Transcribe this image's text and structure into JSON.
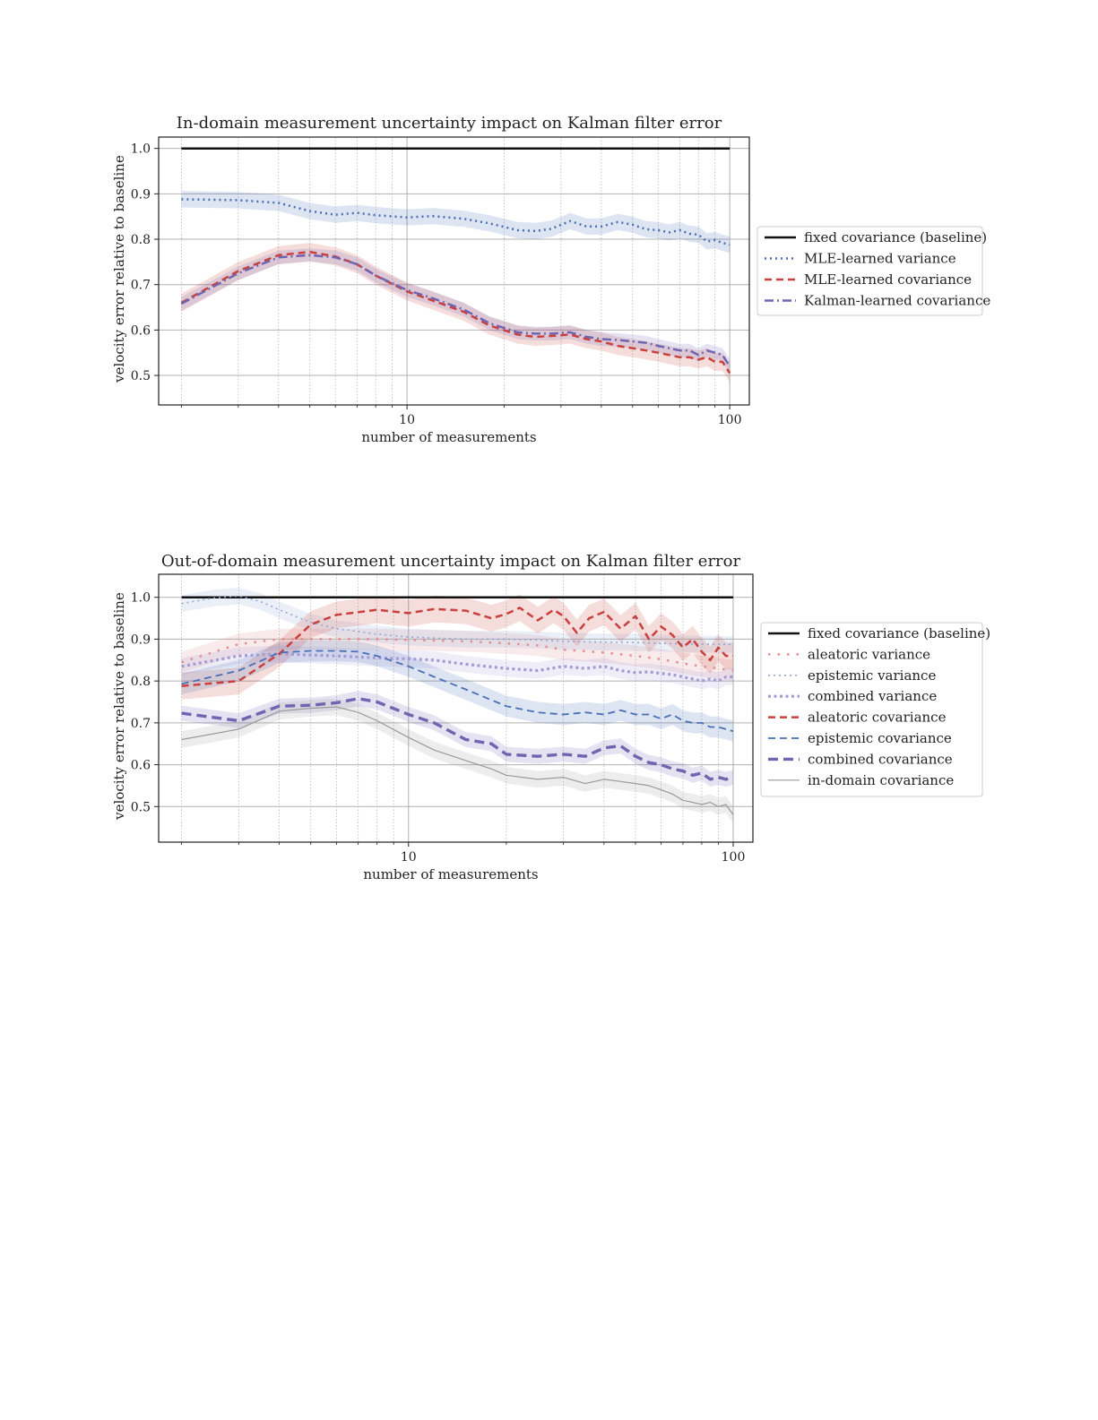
{
  "chart_data": [
    {
      "type": "line",
      "title": "In-domain measurement uncertainty impact on Kalman filter error",
      "xlabel": "number of measurements",
      "ylabel": "velocity error relative to baseline",
      "x_scale": "log",
      "xlim": [
        1.7,
        115
      ],
      "ylim": [
        0.435,
        1.025
      ],
      "x_tick_labels": [
        {
          "value": 10,
          "label": "10"
        },
        {
          "value": 100,
          "label": "100"
        }
      ],
      "y_tick_labels": [
        {
          "value": 0.5,
          "label": "0.5"
        },
        {
          "value": 0.6,
          "label": "0.6"
        },
        {
          "value": 0.7,
          "label": "0.7"
        },
        {
          "value": 0.8,
          "label": "0.8"
        },
        {
          "value": 0.9,
          "label": "0.9"
        },
        {
          "value": 1.0,
          "label": "1.0"
        }
      ],
      "grid": true,
      "legend_position": "outside-right",
      "series": [
        {
          "name": "fixed covariance (baseline)",
          "color": "#111111",
          "style": "solid",
          "width": 2.5,
          "x": [
            2,
            100
          ],
          "y": [
            1.0,
            1.0
          ],
          "band": 0
        },
        {
          "name": "MLE-learned variance",
          "color": "#4a6fb5",
          "style": "dotted",
          "width": 2.5,
          "x": [
            2,
            3,
            4,
            5,
            6,
            7,
            8,
            10,
            12,
            15,
            18,
            22,
            25,
            28,
            32,
            36,
            40,
            45,
            50,
            55,
            60,
            65,
            70,
            75,
            80,
            85,
            90,
            95,
            100
          ],
          "y": [
            0.888,
            0.886,
            0.88,
            0.862,
            0.854,
            0.858,
            0.853,
            0.848,
            0.851,
            0.845,
            0.835,
            0.82,
            0.818,
            0.823,
            0.84,
            0.828,
            0.828,
            0.838,
            0.832,
            0.822,
            0.82,
            0.815,
            0.82,
            0.812,
            0.81,
            0.795,
            0.798,
            0.792,
            0.788
          ],
          "band": 0.018
        },
        {
          "name": "MLE-learned covariance",
          "color": "#c9403e",
          "style": "dashed",
          "width": 2.5,
          "x": [
            2,
            3,
            4,
            5,
            6,
            7,
            8,
            10,
            12,
            15,
            18,
            22,
            25,
            28,
            32,
            36,
            40,
            45,
            50,
            55,
            60,
            65,
            70,
            75,
            80,
            85,
            90,
            95,
            100
          ],
          "y": [
            0.66,
            0.73,
            0.765,
            0.772,
            0.762,
            0.745,
            0.72,
            0.685,
            0.665,
            0.64,
            0.61,
            0.59,
            0.585,
            0.587,
            0.59,
            0.58,
            0.575,
            0.565,
            0.56,
            0.555,
            0.55,
            0.545,
            0.54,
            0.54,
            0.535,
            0.54,
            0.53,
            0.53,
            0.505
          ],
          "band": 0.02
        },
        {
          "name": "Kalman-learned covariance",
          "color": "#7065b0",
          "style": "dashdot",
          "width": 2.5,
          "x": [
            2,
            3,
            4,
            5,
            6,
            7,
            8,
            10,
            12,
            15,
            18,
            22,
            25,
            28,
            32,
            36,
            40,
            45,
            50,
            55,
            60,
            65,
            70,
            75,
            80,
            85,
            90,
            95,
            100
          ],
          "y": [
            0.658,
            0.725,
            0.76,
            0.765,
            0.76,
            0.745,
            0.72,
            0.688,
            0.67,
            0.645,
            0.615,
            0.595,
            0.592,
            0.592,
            0.595,
            0.585,
            0.58,
            0.578,
            0.575,
            0.572,
            0.565,
            0.56,
            0.555,
            0.555,
            0.545,
            0.555,
            0.55,
            0.545,
            0.52
          ],
          "band": 0.015
        }
      ]
    },
    {
      "type": "line",
      "title": "Out-of-domain measurement uncertainty impact on Kalman filter error",
      "xlabel": "number of measurements",
      "ylabel": "velocity error relative to baseline",
      "x_scale": "log",
      "xlim": [
        1.7,
        115
      ],
      "ylim": [
        0.415,
        1.055
      ],
      "x_tick_labels": [
        {
          "value": 10,
          "label": "10"
        },
        {
          "value": 100,
          "label": "100"
        }
      ],
      "y_tick_labels": [
        {
          "value": 0.5,
          "label": "0.5"
        },
        {
          "value": 0.6,
          "label": "0.6"
        },
        {
          "value": 0.7,
          "label": "0.7"
        },
        {
          "value": 0.8,
          "label": "0.8"
        },
        {
          "value": 0.9,
          "label": "0.9"
        },
        {
          "value": 1.0,
          "label": "1.0"
        }
      ],
      "grid": true,
      "legend_position": "outside-right",
      "series": [
        {
          "name": "fixed covariance (baseline)",
          "color": "#111111",
          "style": "solid",
          "width": 2.5,
          "x": [
            2,
            100
          ],
          "y": [
            1.0,
            1.0
          ],
          "band": 0
        },
        {
          "name": "aleatoric variance",
          "color": "#e09090",
          "style": "dotted-sparse",
          "width": 2.5,
          "x": [
            2,
            3,
            4,
            5,
            6,
            8,
            10,
            15,
            20,
            25,
            30,
            40,
            50,
            60,
            70,
            80,
            90,
            100
          ],
          "y": [
            0.845,
            0.888,
            0.9,
            0.9,
            0.9,
            0.9,
            0.898,
            0.895,
            0.89,
            0.885,
            0.875,
            0.868,
            0.86,
            0.852,
            0.842,
            0.835,
            0.83,
            0.825
          ],
          "band": 0.025
        },
        {
          "name": "epistemic variance",
          "color": "#8fa8d4",
          "style": "dotted",
          "width": 1.6,
          "x": [
            2,
            2.5,
            3,
            3.5,
            4,
            5,
            6,
            8,
            10,
            15,
            20,
            25,
            30,
            40,
            50,
            60,
            70,
            80,
            90,
            100
          ],
          "y": [
            0.985,
            0.998,
            1.003,
            0.99,
            0.97,
            0.94,
            0.925,
            0.912,
            0.905,
            0.9,
            0.9,
            0.898,
            0.895,
            0.893,
            0.892,
            0.89,
            0.889,
            0.888,
            0.888,
            0.887
          ],
          "band": 0.02
        },
        {
          "name": "combined variance",
          "color": "#a49bd6",
          "style": "dotted-thick",
          "width": 3.2,
          "x": [
            2,
            3,
            4,
            5,
            6,
            8,
            10,
            12,
            15,
            20,
            25,
            30,
            35,
            40,
            45,
            50,
            55,
            60,
            65,
            70,
            75,
            80,
            85,
            90,
            95,
            100
          ],
          "y": [
            0.835,
            0.86,
            0.865,
            0.862,
            0.86,
            0.855,
            0.853,
            0.85,
            0.84,
            0.83,
            0.825,
            0.835,
            0.83,
            0.835,
            0.825,
            0.82,
            0.822,
            0.818,
            0.815,
            0.81,
            0.805,
            0.8,
            0.805,
            0.8,
            0.81,
            0.81
          ],
          "band": 0.02
        },
        {
          "name": "aleatoric covariance",
          "color": "#c9403e",
          "style": "dashed",
          "width": 2.5,
          "x": [
            2,
            3,
            4,
            5,
            6,
            8,
            10,
            12,
            15,
            18,
            20,
            22,
            25,
            28,
            30,
            33,
            36,
            40,
            45,
            50,
            55,
            60,
            65,
            70,
            75,
            80,
            85,
            90,
            95,
            100
          ],
          "y": [
            0.788,
            0.8,
            0.865,
            0.935,
            0.958,
            0.97,
            0.962,
            0.972,
            0.968,
            0.95,
            0.96,
            0.975,
            0.945,
            0.97,
            0.955,
            0.915,
            0.95,
            0.965,
            0.925,
            0.955,
            0.9,
            0.93,
            0.91,
            0.88,
            0.9,
            0.87,
            0.85,
            0.88,
            0.86,
            0.86
          ],
          "band": 0.032
        },
        {
          "name": "epistemic covariance",
          "color": "#4a6fb5",
          "style": "dashed",
          "width": 1.8,
          "x": [
            2,
            3,
            4,
            5,
            6,
            7,
            8,
            10,
            12,
            15,
            20,
            25,
            30,
            35,
            40,
            45,
            50,
            55,
            60,
            65,
            70,
            75,
            80,
            85,
            90,
            95,
            100
          ],
          "y": [
            0.793,
            0.825,
            0.868,
            0.872,
            0.872,
            0.87,
            0.86,
            0.835,
            0.81,
            0.78,
            0.74,
            0.725,
            0.72,
            0.725,
            0.72,
            0.73,
            0.72,
            0.72,
            0.71,
            0.72,
            0.705,
            0.7,
            0.7,
            0.69,
            0.69,
            0.685,
            0.68
          ],
          "band": 0.025
        },
        {
          "name": "combined covariance",
          "color": "#7065b0",
          "style": "dashed-thick",
          "width": 3.4,
          "x": [
            2,
            3,
            4,
            5,
            6,
            7,
            8,
            10,
            12,
            15,
            18,
            20,
            25,
            30,
            35,
            40,
            45,
            50,
            55,
            60,
            65,
            70,
            75,
            80,
            85,
            90,
            95,
            100
          ],
          "y": [
            0.723,
            0.705,
            0.74,
            0.742,
            0.748,
            0.758,
            0.75,
            0.72,
            0.7,
            0.66,
            0.65,
            0.625,
            0.62,
            0.625,
            0.62,
            0.64,
            0.645,
            0.62,
            0.605,
            0.6,
            0.59,
            0.585,
            0.575,
            0.58,
            0.565,
            0.57,
            0.565,
            0.57
          ],
          "band": 0.018
        },
        {
          "name": "in-domain covariance",
          "color": "#9a9a9a",
          "style": "solid",
          "width": 1.2,
          "x": [
            2,
            3,
            4,
            5,
            6,
            7,
            8,
            10,
            12,
            15,
            18,
            20,
            25,
            30,
            35,
            40,
            45,
            50,
            55,
            60,
            65,
            70,
            75,
            80,
            85,
            90,
            95,
            100
          ],
          "y": [
            0.66,
            0.685,
            0.728,
            0.735,
            0.738,
            0.725,
            0.705,
            0.665,
            0.635,
            0.61,
            0.59,
            0.575,
            0.565,
            0.57,
            0.555,
            0.565,
            0.56,
            0.555,
            0.55,
            0.54,
            0.53,
            0.515,
            0.51,
            0.505,
            0.51,
            0.5,
            0.505,
            0.48
          ],
          "band": 0.02
        }
      ]
    }
  ]
}
